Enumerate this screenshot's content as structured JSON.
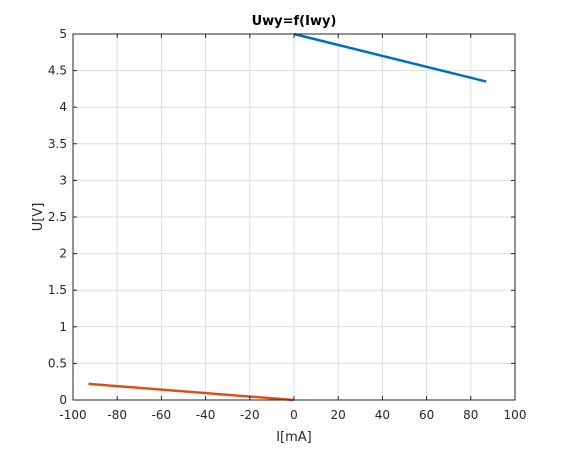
{
  "chart_data": {
    "type": "line",
    "title": "Uwy=f(Iwy)",
    "xlabel": "I[mA]",
    "ylabel": "U[V]",
    "xlim": [
      -100,
      100
    ],
    "ylim": [
      0,
      5
    ],
    "xticks": [
      -100,
      -80,
      -60,
      -40,
      -20,
      0,
      20,
      40,
      60,
      80,
      100
    ],
    "yticks": [
      0,
      0.5,
      1,
      1.5,
      2,
      2.5,
      3,
      3.5,
      4,
      4.5,
      5
    ],
    "xtick_labels": [
      "-100",
      "-80",
      "-60",
      "-40",
      "-20",
      "0",
      "20",
      "40",
      "60",
      "80",
      "100"
    ],
    "ytick_labels": [
      "0",
      "0.5",
      "1",
      "1.5",
      "2",
      "2.5",
      "3",
      "3.5",
      "4",
      "4.5",
      "5"
    ],
    "grid": true,
    "series": [
      {
        "color": "#0072BD",
        "x": [
          0,
          87
        ],
        "y": [
          5.0,
          4.35
        ]
      },
      {
        "color": "#D95319",
        "x": [
          -93,
          0
        ],
        "y": [
          0.22,
          0.0
        ]
      }
    ]
  }
}
